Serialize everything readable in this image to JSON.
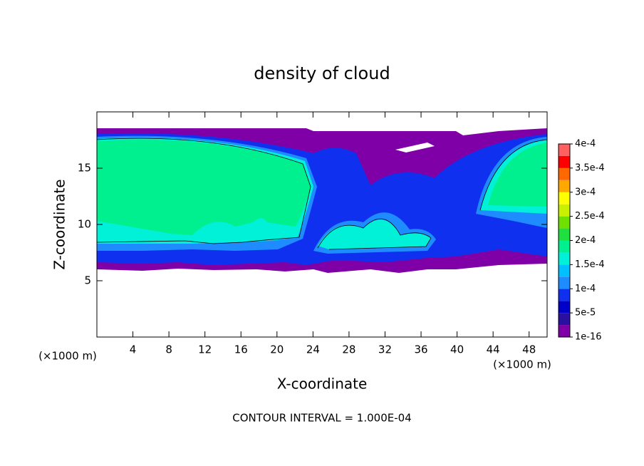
{
  "chart_data": {
    "type": "contour",
    "title": "density of cloud",
    "xlabel": "X-coordinate",
    "ylabel": "Z-coordinate",
    "x_unit": "(×1000 m)",
    "y_unit": "(×1000 m)",
    "annotation": "CONTOUR INTERVAL = 1.000E-04",
    "xlim": [
      0,
      50
    ],
    "ylim": [
      0,
      20
    ],
    "xticks": [
      4,
      8,
      12,
      16,
      20,
      24,
      28,
      32,
      36,
      40,
      44,
      48
    ],
    "yticks": [
      5,
      10,
      15
    ],
    "colorbar": {
      "ticks": [
        1e-16,
        {
          "value": 5e-05,
          "label": "5e-5"
        },
        {
          "value": 0.0001,
          "label": "1e-4"
        },
        {
          "value": 0.00015,
          "label": "1.5e-4"
        },
        {
          "value": 0.0002,
          "label": "2e-4"
        },
        {
          "value": 0.00025,
          "label": "2.5e-4"
        },
        {
          "value": 0.0003,
          "label": "3e-4"
        },
        {
          "value": 0.00035,
          "label": "3.5e-4"
        },
        {
          "value": 0.0004,
          "label": "4e-4"
        }
      ],
      "colors": [
        "#8000a8",
        "#2a10a0",
        "#0000c8",
        "#1030f0",
        "#1e8cff",
        "#00c0ff",
        "#00f0d8",
        "#00f090",
        "#20e040",
        "#70e000",
        "#c8f000",
        "#ffff00",
        "#ffa800",
        "#ff6800",
        "#ff0000",
        "#ff6060"
      ]
    }
  }
}
